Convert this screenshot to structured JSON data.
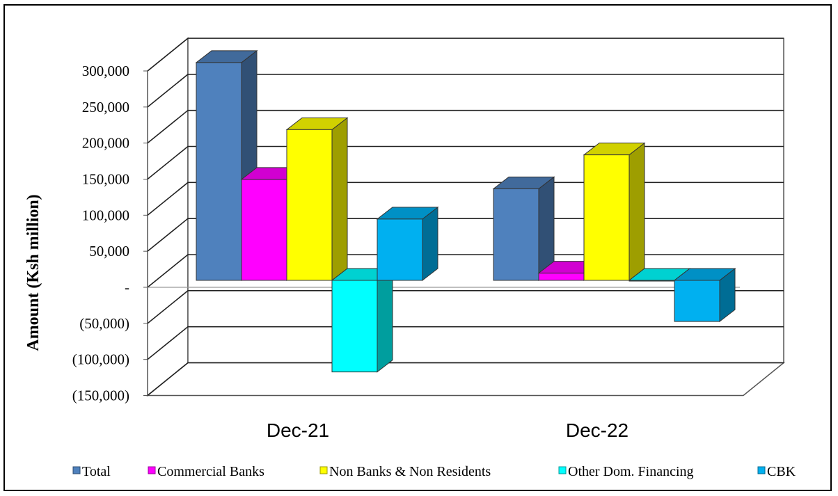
{
  "chart_data": {
    "type": "bar",
    "three_d": true,
    "categories": [
      "Dec-21",
      "Dec-22"
    ],
    "ylabel": "Amount (Ksh million)",
    "ylim": [
      -150000,
      300000
    ],
    "y_ticks": [
      300000,
      250000,
      200000,
      150000,
      100000,
      50000,
      0,
      -50000,
      -100000,
      -150000
    ],
    "y_tick_labels": [
      "300,000",
      "250,000",
      "200,000",
      "150,000",
      "100,000",
      "50,000",
      "-",
      "(50,000)",
      "(100,000)",
      "(150,000)"
    ],
    "grid": true,
    "legend_position": "bottom",
    "series": [
      {
        "name": "Total",
        "color": "#4F81BD",
        "values": [
          302000,
          127000
        ]
      },
      {
        "name": "Commercial Banks",
        "color": "#FF00FF",
        "values": [
          140000,
          10000
        ]
      },
      {
        "name": "Non Banks & Non Residents",
        "color": "#FFFF00",
        "values": [
          209000,
          174000
        ]
      },
      {
        "name": "Other Dom. Financing",
        "color": "#00FFFF",
        "values": [
          -127000,
          -1000
        ]
      },
      {
        "name": "CBK",
        "color": "#00B0F0",
        "values": [
          85000,
          -57000
        ]
      }
    ]
  }
}
